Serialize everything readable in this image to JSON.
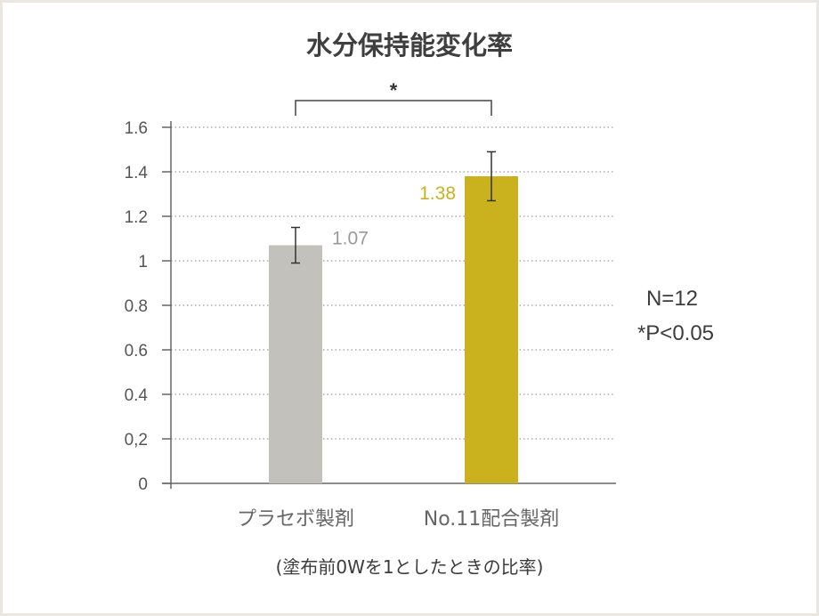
{
  "chart_data": {
    "type": "bar",
    "title": "水分保持能変化率",
    "categories": [
      "プラセボ製剤",
      "No.11配合製剤"
    ],
    "values": [
      1.07,
      1.38
    ],
    "value_labels": [
      "1.07",
      "1.38"
    ],
    "error": [
      0.08,
      0.11
    ],
    "ylim": [
      0,
      1.6
    ],
    "yticks": [
      "0",
      "0,2",
      "0.4",
      "0.6",
      "0.8",
      "1",
      "1.2",
      "1.4",
      "1.6"
    ],
    "ytick_values": [
      0,
      0.2,
      0.4,
      0.6,
      0.8,
      1.0,
      1.2,
      1.4,
      1.6
    ],
    "grid": true,
    "colors": [
      "#c3c1bb",
      "#c9b21e"
    ],
    "label_colors": [
      "#9a9a9a",
      "#c9b21e"
    ],
    "significance": {
      "label": "*",
      "between": [
        0,
        1
      ]
    },
    "xlabel": "(塗布前0Wを1としたときの比率)",
    "notes": [
      "N=12",
      "*P<0.05"
    ]
  }
}
